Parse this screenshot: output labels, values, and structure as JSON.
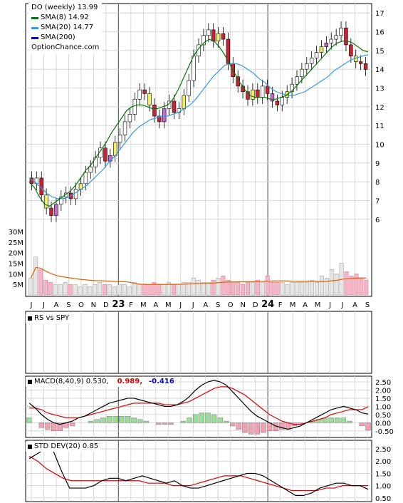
{
  "legend": {
    "title": "DO (weekly) 13.99",
    "items": [
      {
        "label": "SMA(8) 14.92",
        "color": "#007700"
      },
      {
        "label": "SMA(20) 14.77",
        "color": "#3399ee"
      },
      {
        "label": "SMA(200)",
        "color": "#0000cc"
      }
    ],
    "source": "OptionChance.com"
  },
  "x_labels": [
    "J",
    "J",
    "A",
    "S",
    "O",
    "N",
    "D",
    "23",
    "F",
    "M",
    "A",
    "M",
    "J",
    "J",
    "A",
    "S",
    "O",
    "N",
    "D",
    "24",
    "F",
    "M",
    "A",
    "M",
    "J",
    "J",
    "A",
    "S"
  ],
  "bold_labels": [
    "23",
    "24"
  ],
  "rs_panel": {
    "label": "RS vs SPY"
  },
  "macd_panel": {
    "label": "MACD(8,40,9) 0.530,",
    "val2": "0.989,",
    "val3": "-0.416",
    "val2_color": "#dd0000",
    "val3_color": "#0000cc"
  },
  "std_panel": {
    "label": "STD DEV(20) 0.85"
  },
  "chart_data": [
    {
      "type": "candlestick",
      "title": "DO (weekly) 13.99",
      "ylim": [
        5.5,
        17.5
      ],
      "yticks": [
        6,
        7,
        8,
        9,
        10,
        11,
        12,
        13,
        14,
        15,
        16,
        17
      ],
      "volume_ticks": [
        "5M",
        "10M",
        "15M",
        "20M",
        "25M",
        "30M"
      ],
      "volume_ylim": [
        0,
        32
      ],
      "close_approx": [
        7.9,
        8.2,
        7.3,
        6.6,
        6.2,
        6.8,
        7.2,
        7.4,
        7.1,
        7.6,
        7.9,
        8.5,
        8.8,
        9.3,
        9.8,
        9.1,
        9.4,
        10.1,
        10.5,
        11.2,
        11.6,
        12.4,
        12.9,
        12.7,
        12.1,
        11.5,
        11.2,
        11.9,
        12.3,
        11.7,
        11.9,
        12.6,
        13.4,
        14.7,
        15.3,
        15.8,
        16.1,
        15.5,
        15.9,
        15.6,
        14.3,
        13.6,
        13.1,
        12.8,
        12.4,
        12.9,
        12.5,
        13.1,
        12.7,
        12.3,
        12.1,
        12.5,
        12.8,
        13.2,
        13.6,
        14.0,
        14.3,
        14.6,
        14.9,
        15.2,
        15.4,
        15.6,
        15.8,
        16.2,
        15.3,
        14.7,
        14.4,
        14.3,
        13.99
      ],
      "volume_approx": [
        8,
        18,
        12,
        7,
        6,
        5,
        5,
        6,
        5,
        5,
        4,
        5,
        4,
        5,
        6,
        5,
        5,
        4,
        5,
        5,
        4,
        6,
        5,
        5,
        5,
        6,
        5,
        5,
        6,
        5,
        5,
        6,
        6,
        8,
        7,
        6,
        6,
        7,
        8,
        9,
        7,
        6,
        6,
        5,
        6,
        6,
        7,
        6,
        9,
        6,
        6,
        6,
        5,
        6,
        6,
        6,
        6,
        7,
        6,
        9,
        8,
        12,
        10,
        15,
        11,
        9,
        10,
        8,
        7
      ],
      "sma8_approx": [
        8.0,
        7.7,
        7.2,
        6.8,
        6.7,
        6.9,
        7.1,
        7.3,
        7.5,
        7.8,
        8.2,
        8.6,
        8.9,
        9.3,
        9.7,
        10.1,
        10.6,
        11.0,
        11.4,
        11.8,
        12.0,
        12.1,
        12.1,
        12.0,
        11.9,
        11.9,
        12.0,
        12.1,
        12.4,
        12.9,
        13.5,
        14.1,
        14.7,
        15.1,
        15.4,
        15.6,
        15.5,
        15.2,
        14.8,
        14.3,
        13.8,
        13.3,
        12.9,
        12.6,
        12.5,
        12.5,
        12.5,
        12.4,
        12.4,
        12.5,
        12.6,
        12.8,
        13.1,
        13.4,
        13.7,
        14.0,
        14.3,
        14.6,
        14.9,
        15.2,
        15.4,
        15.5,
        15.5,
        15.4,
        15.2,
        15.0,
        14.92
      ],
      "sma20_approx": [
        8.2,
        8.0,
        7.7,
        7.4,
        7.2,
        7.1,
        7.1,
        7.2,
        7.4,
        7.6,
        7.8,
        8.1,
        8.4,
        8.7,
        9.1,
        9.4,
        9.8,
        10.2,
        10.6,
        10.9,
        11.1,
        11.3,
        11.4,
        11.5,
        11.5,
        11.6,
        11.7,
        11.9,
        12.1,
        12.4,
        12.8,
        13.2,
        13.6,
        13.9,
        14.2,
        14.3,
        14.3,
        14.2,
        14.0,
        13.8,
        13.5,
        13.3,
        13.0,
        12.8,
        12.7,
        12.6,
        12.6,
        12.7,
        12.8,
        13.0,
        13.2,
        13.4,
        13.6,
        13.9,
        14.1,
        14.3,
        14.5,
        14.6,
        14.7,
        14.77
      ]
    },
    {
      "type": "line",
      "title": "RS vs SPY",
      "series": []
    },
    {
      "type": "line",
      "title": "MACD(8,40,9)",
      "yticks": [
        -0.5,
        0,
        0.5,
        1.0,
        1.5,
        2.0,
        2.5
      ],
      "ylim": [
        -0.9,
        2.85
      ],
      "macd_approx": [
        1.2,
        0.9,
        0.5,
        0.2,
        0.0,
        -0.1,
        0.0,
        0.1,
        0.3,
        0.4,
        0.6,
        0.8,
        1.0,
        1.2,
        1.3,
        1.4,
        1.5,
        1.5,
        1.4,
        1.3,
        1.2,
        1.1,
        1.0,
        1.0,
        1.1,
        1.3,
        1.6,
        2.0,
        2.3,
        2.5,
        2.6,
        2.5,
        2.3,
        1.9,
        1.5,
        1.1,
        0.7,
        0.4,
        0.2,
        0.0,
        -0.2,
        -0.3,
        -0.4,
        -0.3,
        -0.2,
        0.0,
        0.2,
        0.4,
        0.6,
        0.8,
        0.9,
        1.0,
        0.9,
        0.8,
        0.6,
        0.53
      ],
      "signal_approx": [
        0.9,
        0.9,
        0.8,
        0.6,
        0.5,
        0.4,
        0.3,
        0.3,
        0.3,
        0.4,
        0.5,
        0.6,
        0.7,
        0.8,
        0.9,
        1.0,
        1.1,
        1.2,
        1.2,
        1.2,
        1.2,
        1.2,
        1.1,
        1.1,
        1.1,
        1.2,
        1.3,
        1.5,
        1.7,
        1.9,
        2.1,
        2.2,
        2.2,
        2.1,
        1.9,
        1.7,
        1.4,
        1.1,
        0.8,
        0.5,
        0.3,
        0.1,
        0.0,
        -0.1,
        -0.1,
        0.0,
        0.1,
        0.2,
        0.3,
        0.5,
        0.6,
        0.7,
        0.8,
        0.8,
        0.8,
        0.989
      ]
    },
    {
      "type": "line",
      "title": "STD DEV(20)",
      "yticks": [
        0.5,
        1.0,
        1.5,
        2.0,
        2.5
      ],
      "ylim": [
        0.35,
        2.85
      ],
      "std_approx": [
        2.1,
        2.3,
        2.5,
        2.4,
        1.6,
        0.9,
        0.9,
        0.9,
        1.0,
        1.2,
        1.3,
        1.3,
        1.2,
        1.3,
        1.4,
        1.3,
        1.2,
        1.1,
        1.2,
        1.0,
        0.9,
        0.9,
        1.0,
        1.1,
        1.2,
        1.3,
        1.4,
        1.5,
        1.5,
        1.4,
        1.2,
        1.0,
        0.8,
        0.6,
        0.6,
        0.7,
        0.9,
        1.0,
        1.1,
        1.1,
        1.0,
        1.0,
        0.85
      ],
      "avg_approx": [
        2.2,
        2.0,
        1.7,
        1.5,
        1.3,
        1.2,
        1.2,
        1.2,
        1.2,
        1.2,
        1.2,
        1.2,
        1.2,
        1.2,
        1.1,
        1.1,
        1.1,
        1.0,
        1.0,
        1.0,
        1.1,
        1.2,
        1.3,
        1.4,
        1.4,
        1.4,
        1.3,
        1.2,
        1.1,
        1.0,
        0.9,
        0.8,
        0.8,
        0.8,
        0.8,
        0.9,
        0.9,
        1.0,
        1.0,
        1.0,
        1.0
      ]
    }
  ]
}
